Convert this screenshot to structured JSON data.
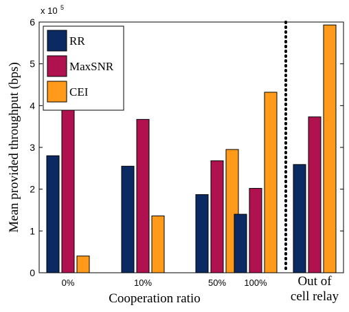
{
  "chart_data": {
    "type": "bar",
    "categories": [
      "0%",
      "10%",
      "50%",
      "100%",
      "Out of cell relay"
    ],
    "category_label_lines": [
      [
        "0%"
      ],
      [
        "10%"
      ],
      [
        "50%"
      ],
      [
        "100%"
      ],
      [
        "Out of",
        "cell relay"
      ]
    ],
    "series": [
      {
        "name": "RR",
        "color": "#0b2a63",
        "values": [
          280000,
          255000,
          187000,
          140000,
          259000
        ]
      },
      {
        "name": "MaxSNR",
        "color": "#b0124f",
        "values": [
          403000,
          367000,
          268000,
          202000,
          373000
        ]
      },
      {
        "name": "CEI",
        "color": "#ff9a1a",
        "values": [
          40000,
          136000,
          295000,
          432000,
          593000
        ]
      }
    ],
    "xlabel": "Cooperation ratio",
    "ylabel": "Mean provided throughput (bps)",
    "ylim": [
      0,
      600000
    ],
    "yticks": [
      0,
      1,
      2,
      3,
      4,
      5,
      6
    ],
    "y_scale_label": "x 10",
    "y_scale_exponent": "5",
    "legend_position": "top-left",
    "grid": false,
    "separator": "dotted vertical line between 100% and Out of cell relay"
  }
}
